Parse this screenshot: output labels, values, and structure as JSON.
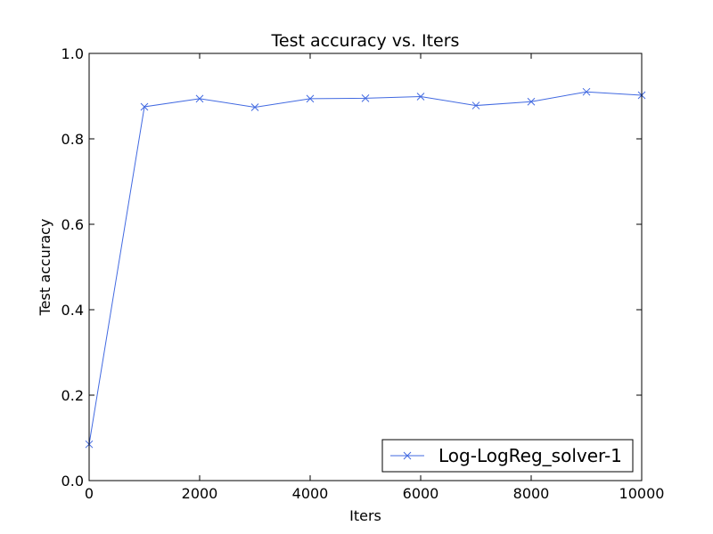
{
  "chart_data": {
    "type": "line",
    "title": "Test accuracy  vs. Iters",
    "xlabel": "Iters",
    "ylabel": "Test accuracy",
    "xlim": [
      0,
      10000
    ],
    "ylim": [
      0.0,
      1.0
    ],
    "x_ticks": [
      "0",
      "2000",
      "4000",
      "6000",
      "8000",
      "10000"
    ],
    "y_ticks": [
      "0.0",
      "0.2",
      "0.4",
      "0.6",
      "0.8",
      "1.0"
    ],
    "grid": false,
    "legend_position": "lower-right",
    "series": [
      {
        "name": "Log-LogReg_solver-1",
        "color": "#4169e1",
        "marker": "x",
        "x": [
          0,
          1000,
          2000,
          3000,
          4000,
          5000,
          6000,
          7000,
          8000,
          9000,
          10000
        ],
        "y": [
          0.085,
          0.875,
          0.894,
          0.874,
          0.894,
          0.895,
          0.899,
          0.878,
          0.887,
          0.91,
          0.902
        ]
      }
    ]
  }
}
